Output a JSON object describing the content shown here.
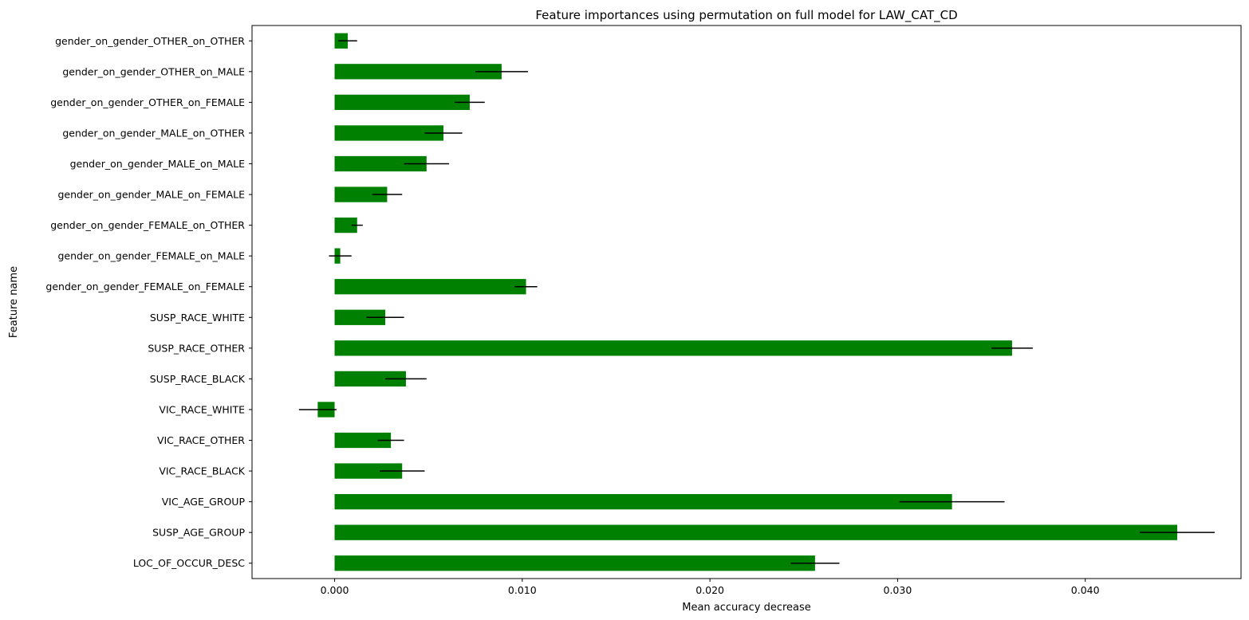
{
  "chart_data": {
    "type": "bar",
    "orientation": "horizontal",
    "title": "Feature importances using permutation on full model for LAW_CAT_CD",
    "xlabel": "Mean accuracy decrease",
    "ylabel": "Feature name",
    "xlim": [
      -0.0044,
      0.0483
    ],
    "xticks": [
      0.0,
      0.01,
      0.02,
      0.03,
      0.04
    ],
    "xtick_labels": [
      "0.000",
      "0.010",
      "0.020",
      "0.030",
      "0.040"
    ],
    "grid": false,
    "legend": "none",
    "bar_color": "#008000",
    "error_color": "#000000",
    "categories": [
      "gender_on_gender_OTHER_on_OTHER",
      "gender_on_gender_OTHER_on_MALE",
      "gender_on_gender_OTHER_on_FEMALE",
      "gender_on_gender_MALE_on_OTHER",
      "gender_on_gender_MALE_on_MALE",
      "gender_on_gender_MALE_on_FEMALE",
      "gender_on_gender_FEMALE_on_OTHER",
      "gender_on_gender_FEMALE_on_MALE",
      "gender_on_gender_FEMALE_on_FEMALE",
      "SUSP_RACE_WHITE",
      "SUSP_RACE_OTHER",
      "SUSP_RACE_BLACK",
      "VIC_RACE_WHITE",
      "VIC_RACE_OTHER",
      "VIC_RACE_BLACK",
      "VIC_AGE_GROUP",
      "SUSP_AGE_GROUP",
      "LOC_OF_OCCUR_DESC"
    ],
    "values": [
      0.0007,
      0.0089,
      0.0072,
      0.0058,
      0.0049,
      0.0028,
      0.0012,
      0.0003,
      0.0102,
      0.0027,
      0.0361,
      0.0038,
      -0.0009,
      0.003,
      0.0036,
      0.0329,
      0.0449,
      0.0256
    ],
    "errors": [
      0.0005,
      0.0014,
      0.0008,
      0.001,
      0.0012,
      0.0008,
      0.0003,
      0.0006,
      0.0006,
      0.001,
      0.0011,
      0.0011,
      0.001,
      0.0007,
      0.0012,
      0.0028,
      0.002,
      0.0013
    ]
  }
}
